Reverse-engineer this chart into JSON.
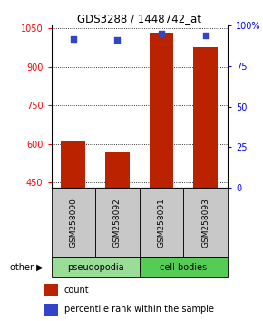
{
  "title": "GDS3288 / 1448742_at",
  "categories": [
    "GSM258090",
    "GSM258092",
    "GSM258091",
    "GSM258093"
  ],
  "count_values": [
    612,
    568,
    1032,
    978
  ],
  "percentile_values": [
    92,
    91,
    95,
    94
  ],
  "ylim_left": [
    430,
    1060
  ],
  "yticks_left": [
    450,
    600,
    750,
    900,
    1050
  ],
  "ylim_right": [
    0,
    100
  ],
  "yticks_right": [
    0,
    25,
    50,
    75,
    100
  ],
  "ytick_labels_right": [
    "0",
    "25",
    "50",
    "75",
    "100%"
  ],
  "bar_color": "#BB2200",
  "dot_color": "#3344CC",
  "bar_width": 0.55,
  "groups": [
    {
      "label": "pseudopodia",
      "indices": [
        0,
        1
      ],
      "color": "#99DD99"
    },
    {
      "label": "cell bodies",
      "indices": [
        2,
        3
      ],
      "color": "#55CC55"
    }
  ],
  "xlabel_area_color": "#C8C8C8",
  "legend_count_label": "count",
  "legend_pct_label": "percentile rank within the sample"
}
